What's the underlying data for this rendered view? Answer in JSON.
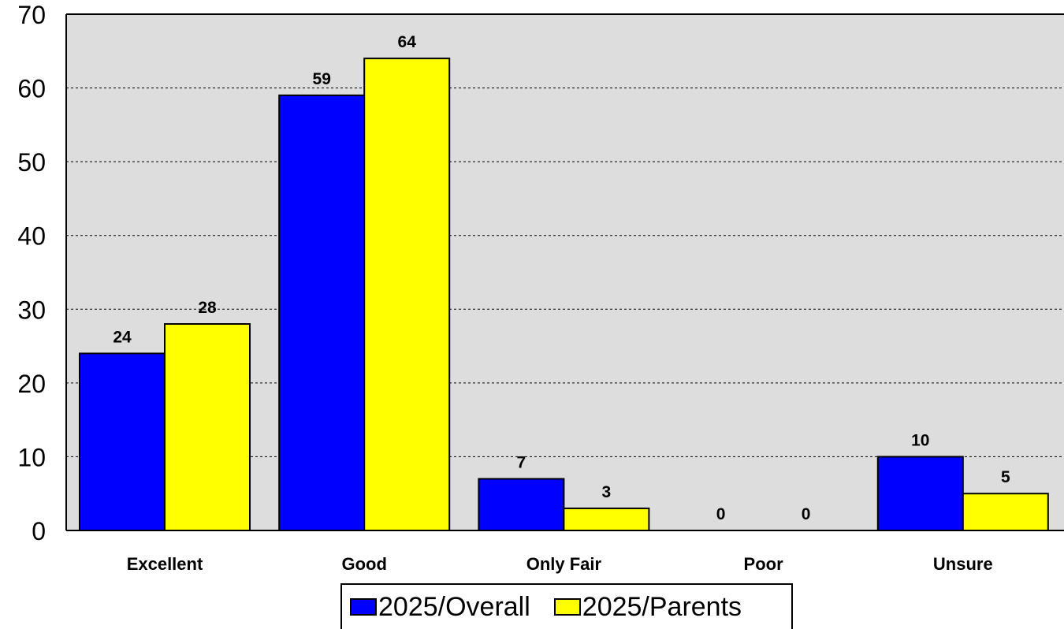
{
  "chart_data": {
    "type": "bar",
    "categories": [
      "Excellent",
      "Good",
      "Only Fair",
      "Poor",
      "Unsure"
    ],
    "series": [
      {
        "name": "2025/Overall",
        "color": "#0000FF",
        "values": [
          24,
          59,
          7,
          0,
          10
        ]
      },
      {
        "name": "2025/Parents",
        "color": "#FFFF00",
        "values": [
          28,
          64,
          3,
          0,
          5
        ]
      }
    ],
    "ylim": [
      0,
      70
    ],
    "yticks": [
      0,
      10,
      20,
      30,
      40,
      50,
      60,
      70
    ],
    "grid": "horizontal dashed",
    "legend_position": "bottom-center",
    "plot_background": "#DDDDDD"
  }
}
